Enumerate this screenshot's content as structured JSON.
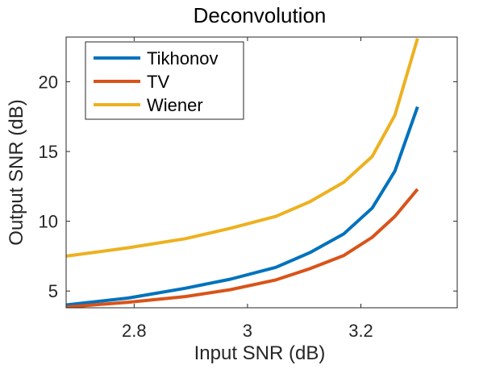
{
  "chart_data": {
    "type": "line",
    "title": "Deconvolution",
    "xlabel": "Input SNR (dB)",
    "ylabel": "Output SNR (dB)",
    "xlim": [
      2.68,
      3.37
    ],
    "ylim": [
      3.8,
      23.2
    ],
    "xticks": [
      2.8,
      3,
      3.2
    ],
    "xtick_labels": [
      "2.8",
      "3",
      "3.2"
    ],
    "yticks": [
      5,
      10,
      15,
      20
    ],
    "ytick_labels": [
      "5",
      "10",
      "15",
      "20"
    ],
    "grid": false,
    "legend_position": "top-left",
    "series": [
      {
        "name": "Tikhonov",
        "color": "#0072BD",
        "x": [
          2.68,
          2.79,
          2.89,
          2.97,
          3.05,
          3.11,
          3.17,
          3.22,
          3.26,
          3.3,
          3.34,
          3.37
        ],
        "y": [
          4.0,
          4.5,
          5.2,
          5.85,
          6.7,
          7.75,
          9.1,
          10.95,
          13.6,
          18.2,
          null,
          null
        ]
      },
      {
        "name": "TV",
        "color": "#D95319",
        "x": [
          2.68,
          2.79,
          2.89,
          2.97,
          3.05,
          3.11,
          3.17,
          3.22,
          3.26,
          3.3,
          3.34,
          3.37
        ],
        "y": [
          3.85,
          4.2,
          4.6,
          5.1,
          5.8,
          6.6,
          7.55,
          8.85,
          10.35,
          12.3,
          null,
          null
        ]
      },
      {
        "name": "Wiener",
        "color": "#EDB120",
        "x": [
          2.68,
          2.79,
          2.89,
          2.97,
          3.05,
          3.11,
          3.17,
          3.22,
          3.26,
          3.3,
          3.34,
          3.37
        ],
        "y": [
          7.5,
          8.1,
          8.75,
          9.5,
          10.35,
          11.4,
          12.8,
          14.65,
          17.6,
          23.1,
          null,
          null
        ]
      }
    ]
  }
}
